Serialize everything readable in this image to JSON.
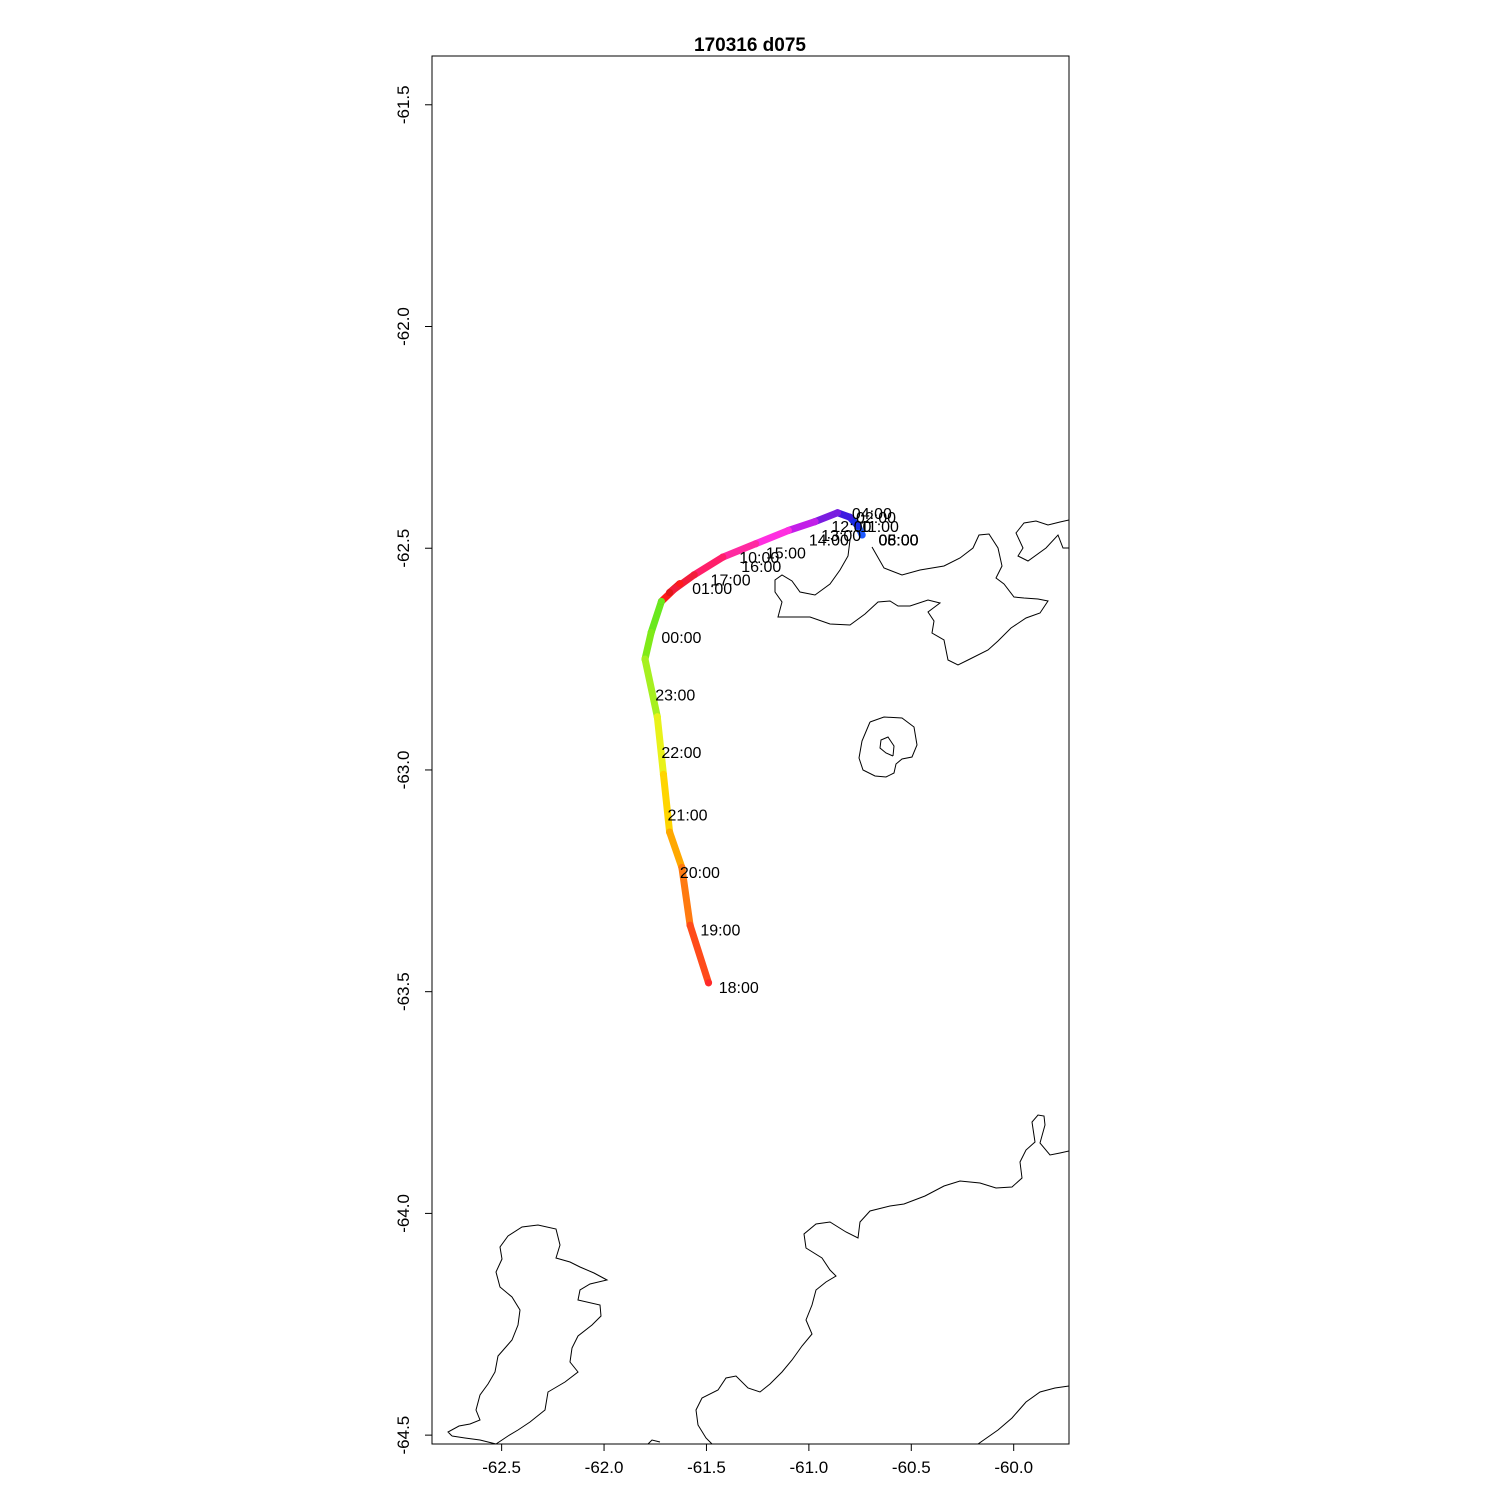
{
  "title": "170316   d075",
  "chart_data": {
    "type": "line",
    "title": "170316   d075",
    "xlabel": "",
    "ylabel": "",
    "xlim": [
      -62.84,
      -59.73
    ],
    "ylim": [
      -64.52,
      -61.39
    ],
    "x_ticks": [
      -62.5,
      -62.0,
      -61.5,
      -61.0,
      -60.5,
      -60.0
    ],
    "y_ticks": [
      -61.5,
      -62.0,
      -62.5,
      -63.0,
      -63.5,
      -64.0,
      -64.5
    ],
    "x_tick_labels": [
      "-62.5",
      "-62.0",
      "-61.5",
      "-61.0",
      "-60.5",
      "-60.0"
    ],
    "y_tick_labels": [
      "-61.5",
      "-62.0",
      "-62.5",
      "-63.0",
      "-63.5",
      "-64.0",
      "-64.5"
    ],
    "grid": false,
    "track": [
      {
        "x": -61.49,
        "y": -63.48,
        "color": "#ff2a2a"
      },
      {
        "x": -61.58,
        "y": -63.35,
        "color": "#ff4b1a"
      },
      {
        "x": -61.62,
        "y": -63.22,
        "color": "#ff7a10"
      },
      {
        "x": -61.68,
        "y": -63.14,
        "color": "#ffa800"
      },
      {
        "x": -61.71,
        "y": -63.01,
        "color": "#ffd500"
      },
      {
        "x": -61.74,
        "y": -62.88,
        "color": "#e9f21a"
      },
      {
        "x": -61.8,
        "y": -62.75,
        "color": "#a6f020"
      },
      {
        "x": -61.77,
        "y": -62.69,
        "color": "#7fea18"
      },
      {
        "x": -61.72,
        "y": -62.62,
        "color": "#69e81e"
      },
      {
        "x": -61.63,
        "y": -62.58,
        "color": "#ff1a1a"
      },
      {
        "x": -61.68,
        "y": -62.6,
        "color": "#e01818"
      },
      {
        "x": -61.56,
        "y": -62.56,
        "color": "#f21c3b"
      },
      {
        "x": -61.42,
        "y": -62.52,
        "color": "#ff1f6a"
      },
      {
        "x": -61.26,
        "y": -62.49,
        "color": "#ff2aa0"
      },
      {
        "x": -61.1,
        "y": -62.46,
        "color": "#ff2fe0"
      },
      {
        "x": -60.97,
        "y": -62.44,
        "color": "#c21fe8"
      },
      {
        "x": -60.86,
        "y": -62.42,
        "color": "#7a1de0"
      },
      {
        "x": -60.8,
        "y": -62.43,
        "color": "#3d1ce0"
      },
      {
        "x": -60.76,
        "y": -62.45,
        "color": "#1a2be6"
      },
      {
        "x": -60.74,
        "y": -62.47,
        "color": "#1f5aff"
      }
    ],
    "time_labels": [
      {
        "text": "18:00",
        "x": -61.44,
        "y": -63.49
      },
      {
        "text": "19:00",
        "x": -61.53,
        "y": -63.36
      },
      {
        "text": "20:00",
        "x": -61.63,
        "y": -63.23
      },
      {
        "text": "21:00",
        "x": -61.69,
        "y": -63.1
      },
      {
        "text": "22:00",
        "x": -61.72,
        "y": -62.96
      },
      {
        "text": "23:00",
        "x": -61.75,
        "y": -62.83
      },
      {
        "text": "00:00",
        "x": -61.72,
        "y": -62.7
      },
      {
        "text": "01:00",
        "x": -61.57,
        "y": -62.59
      },
      {
        "text": "17:00",
        "x": -61.48,
        "y": -62.57
      },
      {
        "text": "16:00",
        "x": -61.33,
        "y": -62.54
      },
      {
        "text": "10:00",
        "x": -61.34,
        "y": -62.52
      },
      {
        "text": "15:00",
        "x": -61.21,
        "y": -62.51
      },
      {
        "text": "14:00",
        "x": -61.0,
        "y": -62.48
      },
      {
        "text": "13:00",
        "x": -60.94,
        "y": -62.47
      },
      {
        "text": "12:00",
        "x": -60.89,
        "y": -62.45
      },
      {
        "text": "04:00",
        "x": -60.79,
        "y": -62.42
      },
      {
        "text": "02:00",
        "x": -60.77,
        "y": -62.43
      },
      {
        "text": "11:00",
        "x": -60.75,
        "y": -62.45
      },
      {
        "text": "05:00",
        "x": -60.66,
        "y": -62.48
      },
      {
        "text": "06:00",
        "x": -60.66,
        "y": -62.48
      },
      {
        "text": "08:00",
        "x": -60.66,
        "y": -62.48
      }
    ]
  }
}
